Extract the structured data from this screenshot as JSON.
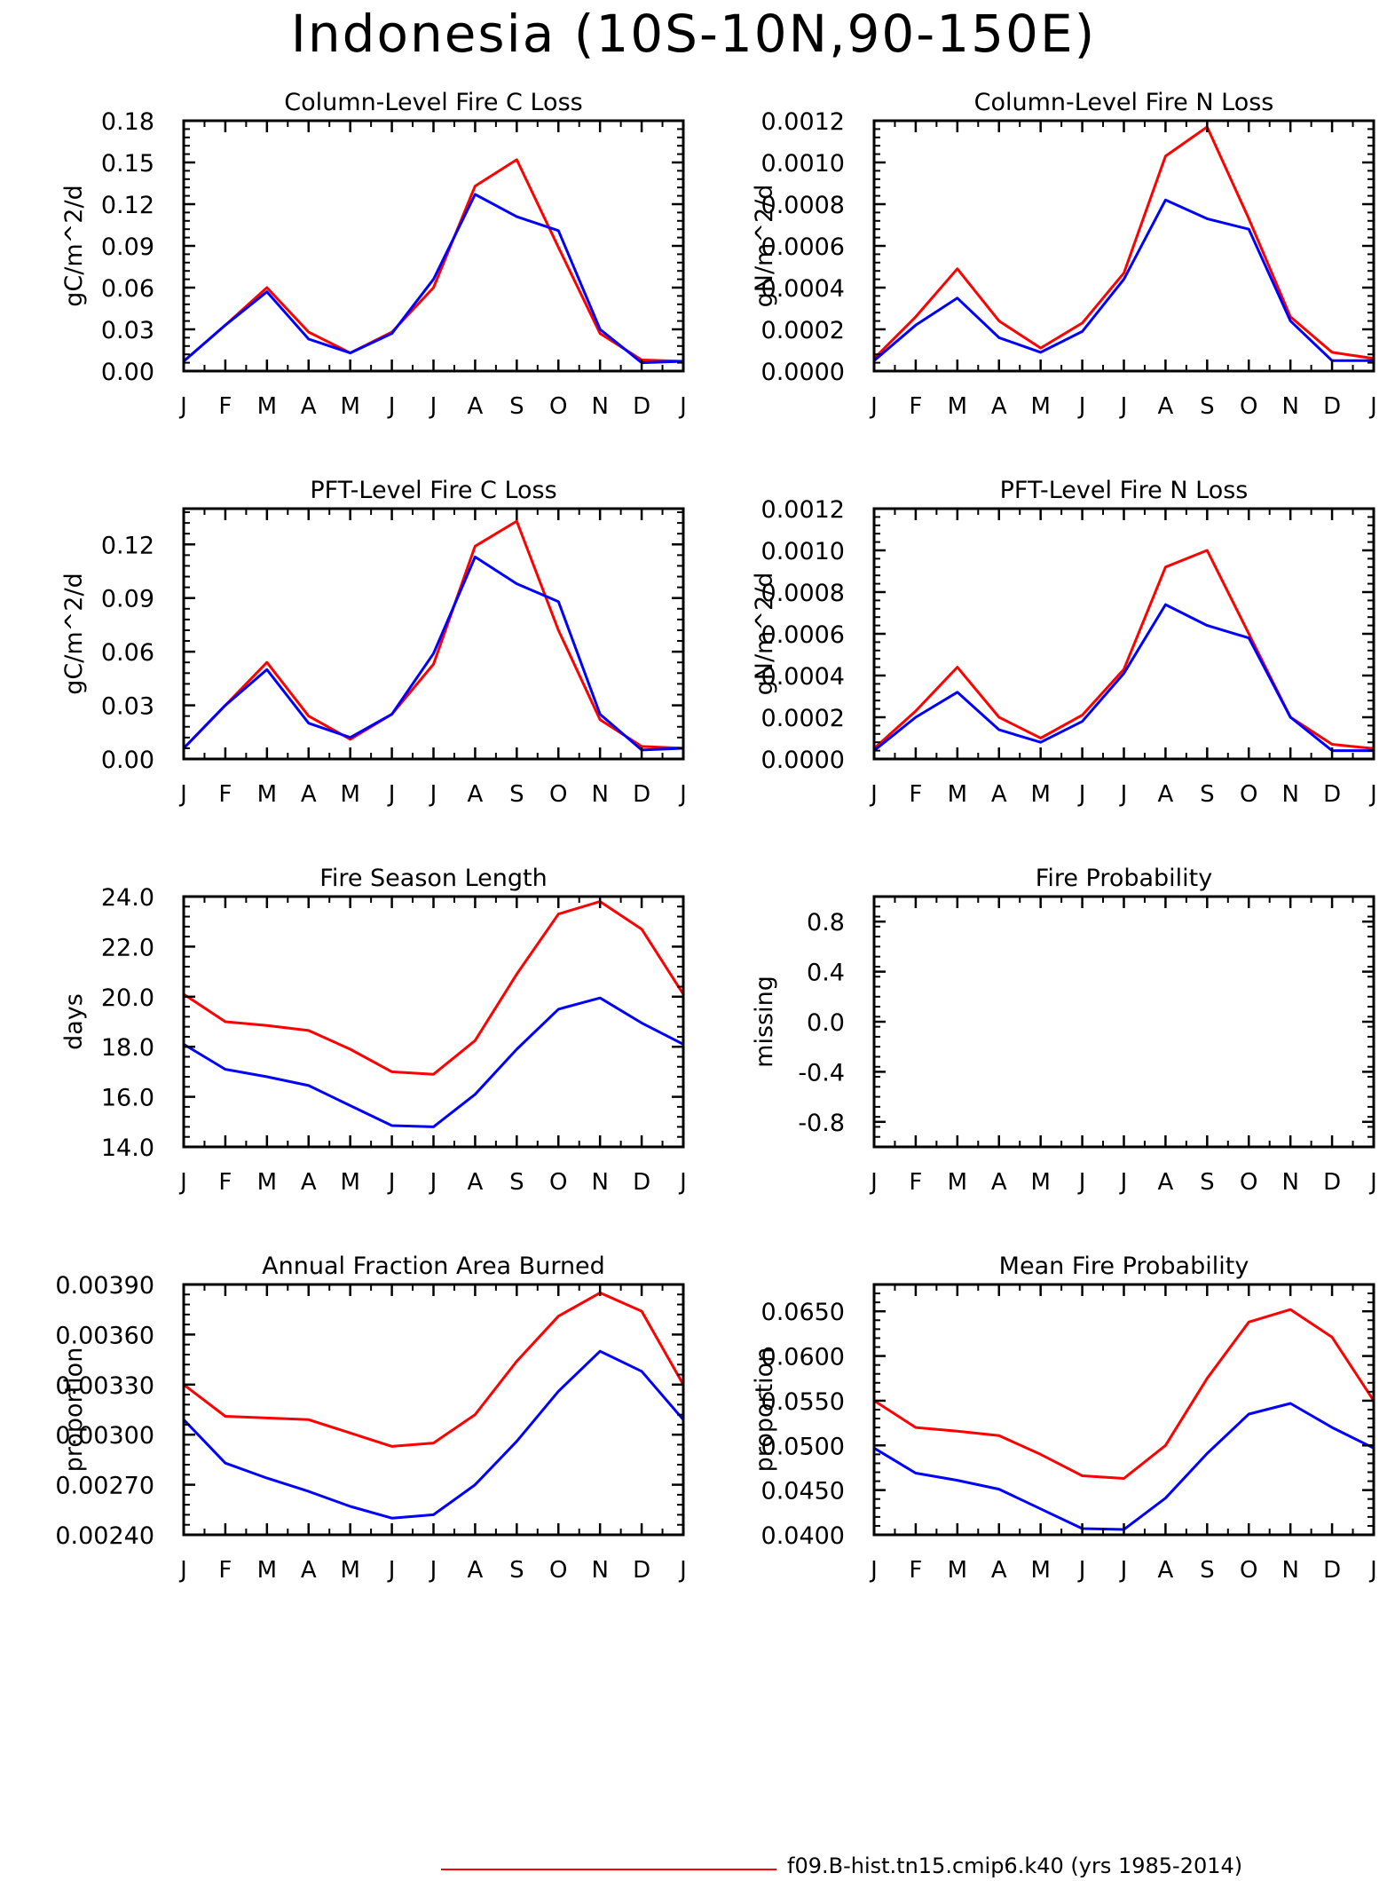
{
  "title": "Indonesia (10S-10N,90-150E)",
  "legend": {
    "label": "f09.B-hist.tn15.cmip6.k40 (yrs 1985-2014)"
  },
  "colors": {
    "series1": "#ff0000",
    "series2": "#0000ff",
    "axis": "#000000"
  },
  "chart_data": [
    {
      "type": "line",
      "title": "Column-Level Fire C Loss",
      "ylabel": "gC/m^2/d",
      "categories": [
        "J",
        "F",
        "M",
        "A",
        "M",
        "J",
        "J",
        "A",
        "S",
        "O",
        "N",
        "D",
        "J"
      ],
      "ylim": [
        0.0,
        0.18
      ],
      "yticks": [
        0.0,
        0.03,
        0.06,
        0.09,
        0.12,
        0.15,
        0.18
      ],
      "ytick_labels": [
        "0.00",
        "0.03",
        "0.06",
        "0.09",
        "0.12",
        "0.15",
        "0.18"
      ],
      "series": [
        {
          "color": "#ff0000",
          "values": [
            0.007,
            0.033,
            0.06,
            0.028,
            0.013,
            0.028,
            0.06,
            0.133,
            0.152,
            0.089,
            0.027,
            0.008,
            0.007
          ]
        },
        {
          "color": "#0000ff",
          "values": [
            0.007,
            0.033,
            0.057,
            0.023,
            0.013,
            0.027,
            0.066,
            0.127,
            0.111,
            0.101,
            0.03,
            0.006,
            0.007
          ]
        }
      ]
    },
    {
      "type": "line",
      "title": "Column-Level Fire N Loss",
      "ylabel": "gN/m^2/d",
      "categories": [
        "J",
        "F",
        "M",
        "A",
        "M",
        "J",
        "J",
        "A",
        "S",
        "O",
        "N",
        "D",
        "J"
      ],
      "ylim": [
        0.0,
        0.0012
      ],
      "yticks": [
        0.0,
        0.0002,
        0.0004,
        0.0006,
        0.0008,
        0.001,
        0.0012
      ],
      "ytick_labels": [
        "0.0000",
        "0.0002",
        "0.0004",
        "0.0006",
        "0.0008",
        "0.0010",
        "0.0012"
      ],
      "series": [
        {
          "color": "#ff0000",
          "values": [
            6e-05,
            0.00026,
            0.00049,
            0.00024,
            0.00011,
            0.00023,
            0.00047,
            0.00103,
            0.00117,
            0.00073,
            0.00026,
            9e-05,
            6e-05
          ]
        },
        {
          "color": "#0000ff",
          "values": [
            5e-05,
            0.00022,
            0.00035,
            0.00016,
            9e-05,
            0.00019,
            0.00044,
            0.00082,
            0.00073,
            0.00068,
            0.00024,
            5e-05,
            5e-05
          ]
        }
      ]
    },
    {
      "type": "line",
      "title": "PFT-Level Fire C Loss",
      "ylabel": "gC/m^2/d",
      "categories": [
        "J",
        "F",
        "M",
        "A",
        "M",
        "J",
        "J",
        "A",
        "S",
        "O",
        "N",
        "D",
        "J"
      ],
      "ylim": [
        0.0,
        0.14
      ],
      "yticks": [
        0.0,
        0.03,
        0.06,
        0.09,
        0.12
      ],
      "ytick_labels": [
        "0.00",
        "0.03",
        "0.06",
        "0.09",
        "0.12"
      ],
      "series": [
        {
          "color": "#ff0000",
          "values": [
            0.006,
            0.03,
            0.054,
            0.024,
            0.011,
            0.025,
            0.053,
            0.119,
            0.133,
            0.072,
            0.022,
            0.007,
            0.006
          ]
        },
        {
          "color": "#0000ff",
          "values": [
            0.006,
            0.03,
            0.05,
            0.02,
            0.012,
            0.025,
            0.059,
            0.113,
            0.098,
            0.088,
            0.025,
            0.005,
            0.006
          ]
        }
      ]
    },
    {
      "type": "line",
      "title": "PFT-Level Fire N Loss",
      "ylabel": "gN/m^2/d",
      "categories": [
        "J",
        "F",
        "M",
        "A",
        "M",
        "J",
        "J",
        "A",
        "S",
        "O",
        "N",
        "D",
        "J"
      ],
      "ylim": [
        0.0,
        0.0012
      ],
      "yticks": [
        0.0,
        0.0002,
        0.0004,
        0.0006,
        0.0008,
        0.001,
        0.0012
      ],
      "ytick_labels": [
        "0.0000",
        "0.0002",
        "0.0004",
        "0.0006",
        "0.0008",
        "0.0010",
        "0.0012"
      ],
      "series": [
        {
          "color": "#ff0000",
          "values": [
            5e-05,
            0.00023,
            0.00044,
            0.0002,
            0.0001,
            0.00021,
            0.00043,
            0.00092,
            0.001,
            0.0006,
            0.0002,
            7e-05,
            5e-05
          ]
        },
        {
          "color": "#0000ff",
          "values": [
            4e-05,
            0.0002,
            0.00032,
            0.00014,
            8e-05,
            0.00018,
            0.00041,
            0.00074,
            0.00064,
            0.00058,
            0.0002,
            4e-05,
            4e-05
          ]
        }
      ]
    },
    {
      "type": "line",
      "title": "Fire Season Length",
      "ylabel": "days",
      "categories": [
        "J",
        "F",
        "M",
        "A",
        "M",
        "J",
        "J",
        "A",
        "S",
        "O",
        "N",
        "D",
        "J"
      ],
      "ylim": [
        14.0,
        24.0
      ],
      "yticks": [
        14,
        16,
        18,
        20,
        22,
        24
      ],
      "ytick_labels": [
        "14.0",
        "16.0",
        "18.0",
        "20.0",
        "22.0",
        "24.0"
      ],
      "series": [
        {
          "color": "#ff0000",
          "values": [
            20.1,
            19.0,
            18.85,
            18.65,
            17.9,
            17.0,
            16.9,
            18.25,
            20.9,
            23.3,
            23.8,
            22.7,
            20.1
          ]
        },
        {
          "color": "#0000ff",
          "values": [
            18.1,
            17.1,
            16.8,
            16.45,
            15.65,
            14.85,
            14.8,
            16.1,
            17.9,
            19.5,
            19.95,
            18.95,
            18.1
          ]
        }
      ]
    },
    {
      "type": "line",
      "title": "Fire Probability",
      "ylabel": "missing",
      "categories": [
        "J",
        "F",
        "M",
        "A",
        "M",
        "J",
        "J",
        "A",
        "S",
        "O",
        "N",
        "D",
        "J"
      ],
      "ylim": [
        -1.0,
        1.0
      ],
      "yticks": [
        -0.8,
        -0.4,
        0.0,
        0.4,
        0.8
      ],
      "ytick_labels": [
        "-0.8",
        "-0.4",
        "0.0",
        "0.4",
        "0.8"
      ],
      "series": []
    },
    {
      "type": "line",
      "title": "Annual Fraction Area Burned",
      "ylabel": "proportion",
      "categories": [
        "J",
        "F",
        "M",
        "A",
        "M",
        "J",
        "J",
        "A",
        "S",
        "O",
        "N",
        "D",
        "J"
      ],
      "ylim": [
        0.0024,
        0.0039
      ],
      "yticks": [
        0.0024,
        0.0027,
        0.003,
        0.0033,
        0.0036,
        0.0039
      ],
      "ytick_labels": [
        "0.00240",
        "0.00270",
        "0.00300",
        "0.00330",
        "0.00360",
        "0.00390"
      ],
      "series": [
        {
          "color": "#ff0000",
          "values": [
            0.0033,
            0.00311,
            0.0031,
            0.00309,
            0.00301,
            0.00293,
            0.00295,
            0.00312,
            0.00344,
            0.00371,
            0.00385,
            0.00374,
            0.0033
          ]
        },
        {
          "color": "#0000ff",
          "values": [
            0.00309,
            0.00283,
            0.00274,
            0.00266,
            0.00257,
            0.0025,
            0.00252,
            0.0027,
            0.00296,
            0.00326,
            0.0035,
            0.00338,
            0.00309
          ]
        }
      ]
    },
    {
      "type": "line",
      "title": "Mean Fire Probability",
      "ylabel": "proportion",
      "categories": [
        "J",
        "F",
        "M",
        "A",
        "M",
        "J",
        "J",
        "A",
        "S",
        "O",
        "N",
        "D",
        "J"
      ],
      "ylim": [
        0.04,
        0.068
      ],
      "yticks": [
        0.04,
        0.045,
        0.05,
        0.055,
        0.06,
        0.065
      ],
      "ytick_labels": [
        "0.0400",
        "0.0450",
        "0.0500",
        "0.0550",
        "0.0600",
        "0.0650"
      ],
      "series": [
        {
          "color": "#ff0000",
          "values": [
            0.055,
            0.052,
            0.0516,
            0.0511,
            0.049,
            0.0466,
            0.0463,
            0.05,
            0.0575,
            0.0638,
            0.0652,
            0.0621,
            0.055
          ]
        },
        {
          "color": "#0000ff",
          "values": [
            0.0497,
            0.0469,
            0.0461,
            0.0451,
            0.0429,
            0.0407,
            0.0406,
            0.0441,
            0.0491,
            0.0535,
            0.0547,
            0.052,
            0.0497
          ]
        }
      ]
    }
  ]
}
